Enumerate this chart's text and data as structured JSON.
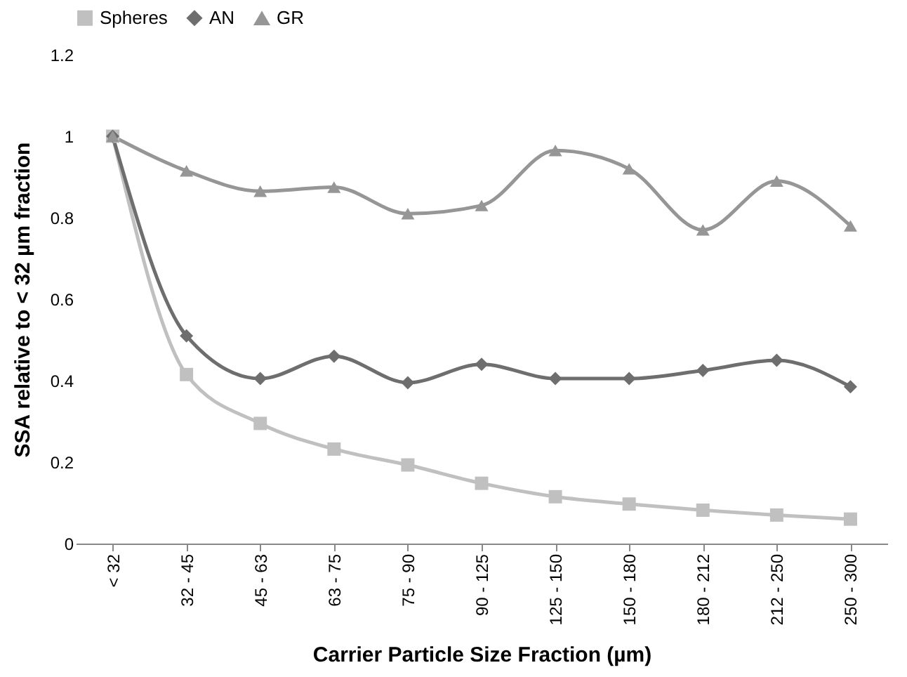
{
  "chart_data": {
    "type": "line",
    "xlabel": "Carrier Particle Size Fraction (µm)",
    "ylabel": "SSA relative to < 32 µm fraction",
    "categories": [
      "< 32",
      "32 - 45",
      "45 - 63",
      "63 - 75",
      "75 - 90",
      "90 - 125",
      "125 - 150",
      "150 - 180",
      "180 - 212",
      "212 - 250",
      "250 - 300"
    ],
    "series": [
      {
        "name": "Spheres",
        "color": "#c0c0c0",
        "marker": "square",
        "values": [
          1,
          0.415,
          0.295,
          0.232,
          0.193,
          0.148,
          0.115,
          0.097,
          0.082,
          0.07,
          0.06
        ]
      },
      {
        "name": "AN",
        "color": "#6e6e6e",
        "marker": "diamond",
        "values": [
          1,
          0.51,
          0.405,
          0.46,
          0.395,
          0.44,
          0.405,
          0.405,
          0.425,
          0.45,
          0.385
        ]
      },
      {
        "name": "GR",
        "color": "#969696",
        "marker": "triangle",
        "values": [
          1,
          0.915,
          0.865,
          0.875,
          0.81,
          0.83,
          0.965,
          0.92,
          0.77,
          0.89,
          0.78
        ]
      }
    ],
    "ylim": [
      0,
      1.2
    ],
    "yticks": [
      0,
      0.2,
      0.4,
      0.6,
      0.8,
      1,
      1.2
    ],
    "grid": false,
    "legend": "top"
  }
}
